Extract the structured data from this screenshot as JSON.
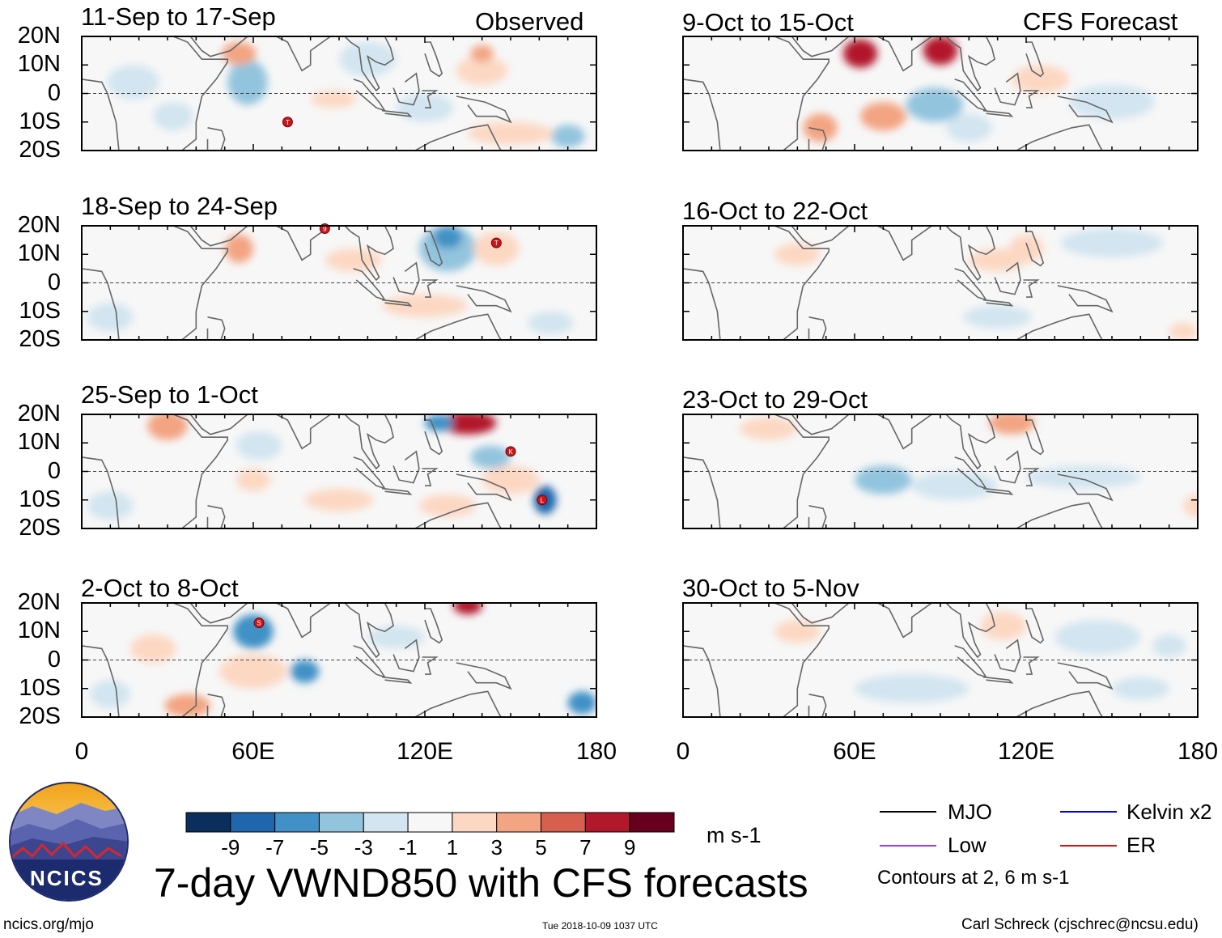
{
  "header": {
    "observed_label": "Observed",
    "forecast_label": "CFS Forecast"
  },
  "colors": {
    "land": "#666666",
    "mjo": "#000000",
    "kelvin": "#0000dd",
    "low": "#a040e0",
    "er": "#e01010"
  },
  "chart_data": [
    {
      "type": "heatmap",
      "panel": "observed-1",
      "title": "11-Sep to 17-Sep",
      "xlim": [
        0,
        180
      ],
      "ylim": [
        -20,
        20
      ],
      "annotations": [
        {
          "label": "T",
          "lon": 72,
          "lat": -10
        }
      ]
    },
    {
      "type": "heatmap",
      "panel": "observed-2",
      "title": "18-Sep to 24-Sep",
      "xlim": [
        0,
        180
      ],
      "ylim": [
        -20,
        20
      ],
      "annotations": [
        {
          "label": "9",
          "lon": 85,
          "lat": 19
        },
        {
          "label": "T",
          "lon": 145,
          "lat": 14
        }
      ]
    },
    {
      "type": "heatmap",
      "panel": "observed-3",
      "title": "25-Sep to 1-Oct",
      "xlim": [
        0,
        180
      ],
      "ylim": [
        -20,
        20
      ],
      "annotations": [
        {
          "label": "K",
          "lon": 150,
          "lat": 7
        },
        {
          "label": "L",
          "lon": 161,
          "lat": -10
        }
      ]
    },
    {
      "type": "heatmap",
      "panel": "observed-4",
      "title": "2-Oct to 8-Oct",
      "xlim": [
        0,
        180
      ],
      "ylim": [
        -20,
        20
      ],
      "annotations": [
        {
          "label": "S",
          "lon": 62,
          "lat": 13
        }
      ]
    },
    {
      "type": "heatmap",
      "panel": "forecast-1",
      "title": "9-Oct to 15-Oct",
      "xlim": [
        0,
        180
      ],
      "ylim": [
        -20,
        20
      ],
      "annotations": []
    },
    {
      "type": "heatmap",
      "panel": "forecast-2",
      "title": "16-Oct to 22-Oct",
      "xlim": [
        0,
        180
      ],
      "ylim": [
        -20,
        20
      ],
      "annotations": []
    },
    {
      "type": "heatmap",
      "panel": "forecast-3",
      "title": "23-Oct to 29-Oct",
      "xlim": [
        0,
        180
      ],
      "ylim": [
        -20,
        20
      ],
      "annotations": []
    },
    {
      "type": "heatmap",
      "panel": "forecast-4",
      "title": "30-Oct to 5-Nov",
      "xlim": [
        0,
        180
      ],
      "ylim": [
        -20,
        20
      ],
      "annotations": []
    }
  ],
  "axes": {
    "y_ticks": [
      {
        "lat": 20,
        "label": "20N"
      },
      {
        "lat": 10,
        "label": "10N"
      },
      {
        "lat": 0,
        "label": "0"
      },
      {
        "lat": -10,
        "label": "10S"
      },
      {
        "lat": -20,
        "label": "20S"
      }
    ],
    "x_ticks": [
      {
        "lon": 0,
        "label": "0"
      },
      {
        "lon": 60,
        "label": "60E"
      },
      {
        "lon": 120,
        "label": "120E"
      },
      {
        "lon": 180,
        "label": "180"
      }
    ]
  },
  "colorbar": {
    "colors": [
      "#0a2f5c",
      "#1f66ad",
      "#4191c6",
      "#93c4de",
      "#d2e5f0",
      "#f7f7f7",
      "#fcd8c3",
      "#f3a482",
      "#d6604d",
      "#b2182b",
      "#67001f"
    ],
    "labels": [
      "-9",
      "-7",
      "-5",
      "-3",
      "-1",
      "1",
      "3",
      "5",
      "7",
      "9"
    ],
    "unit": "m s-1"
  },
  "legend": {
    "items": [
      {
        "label": "MJO",
        "color_key": "mjo"
      },
      {
        "label": "Kelvin x2",
        "color_key": "kelvin"
      },
      {
        "label": "Low",
        "color_key": "low"
      },
      {
        "label": "ER",
        "color_key": "er"
      }
    ],
    "contours_note": "Contours at 2, 6 m s-1"
  },
  "footer": {
    "main_title": "7-day VWND850 with CFS forecasts",
    "logo_text": "NCICS",
    "url": "ncics.org/mjo",
    "timestamp": "Tue 2018-10-09 1037 UTC",
    "credit": "Carl Schreck (cjschrec@ncsu.edu)"
  }
}
